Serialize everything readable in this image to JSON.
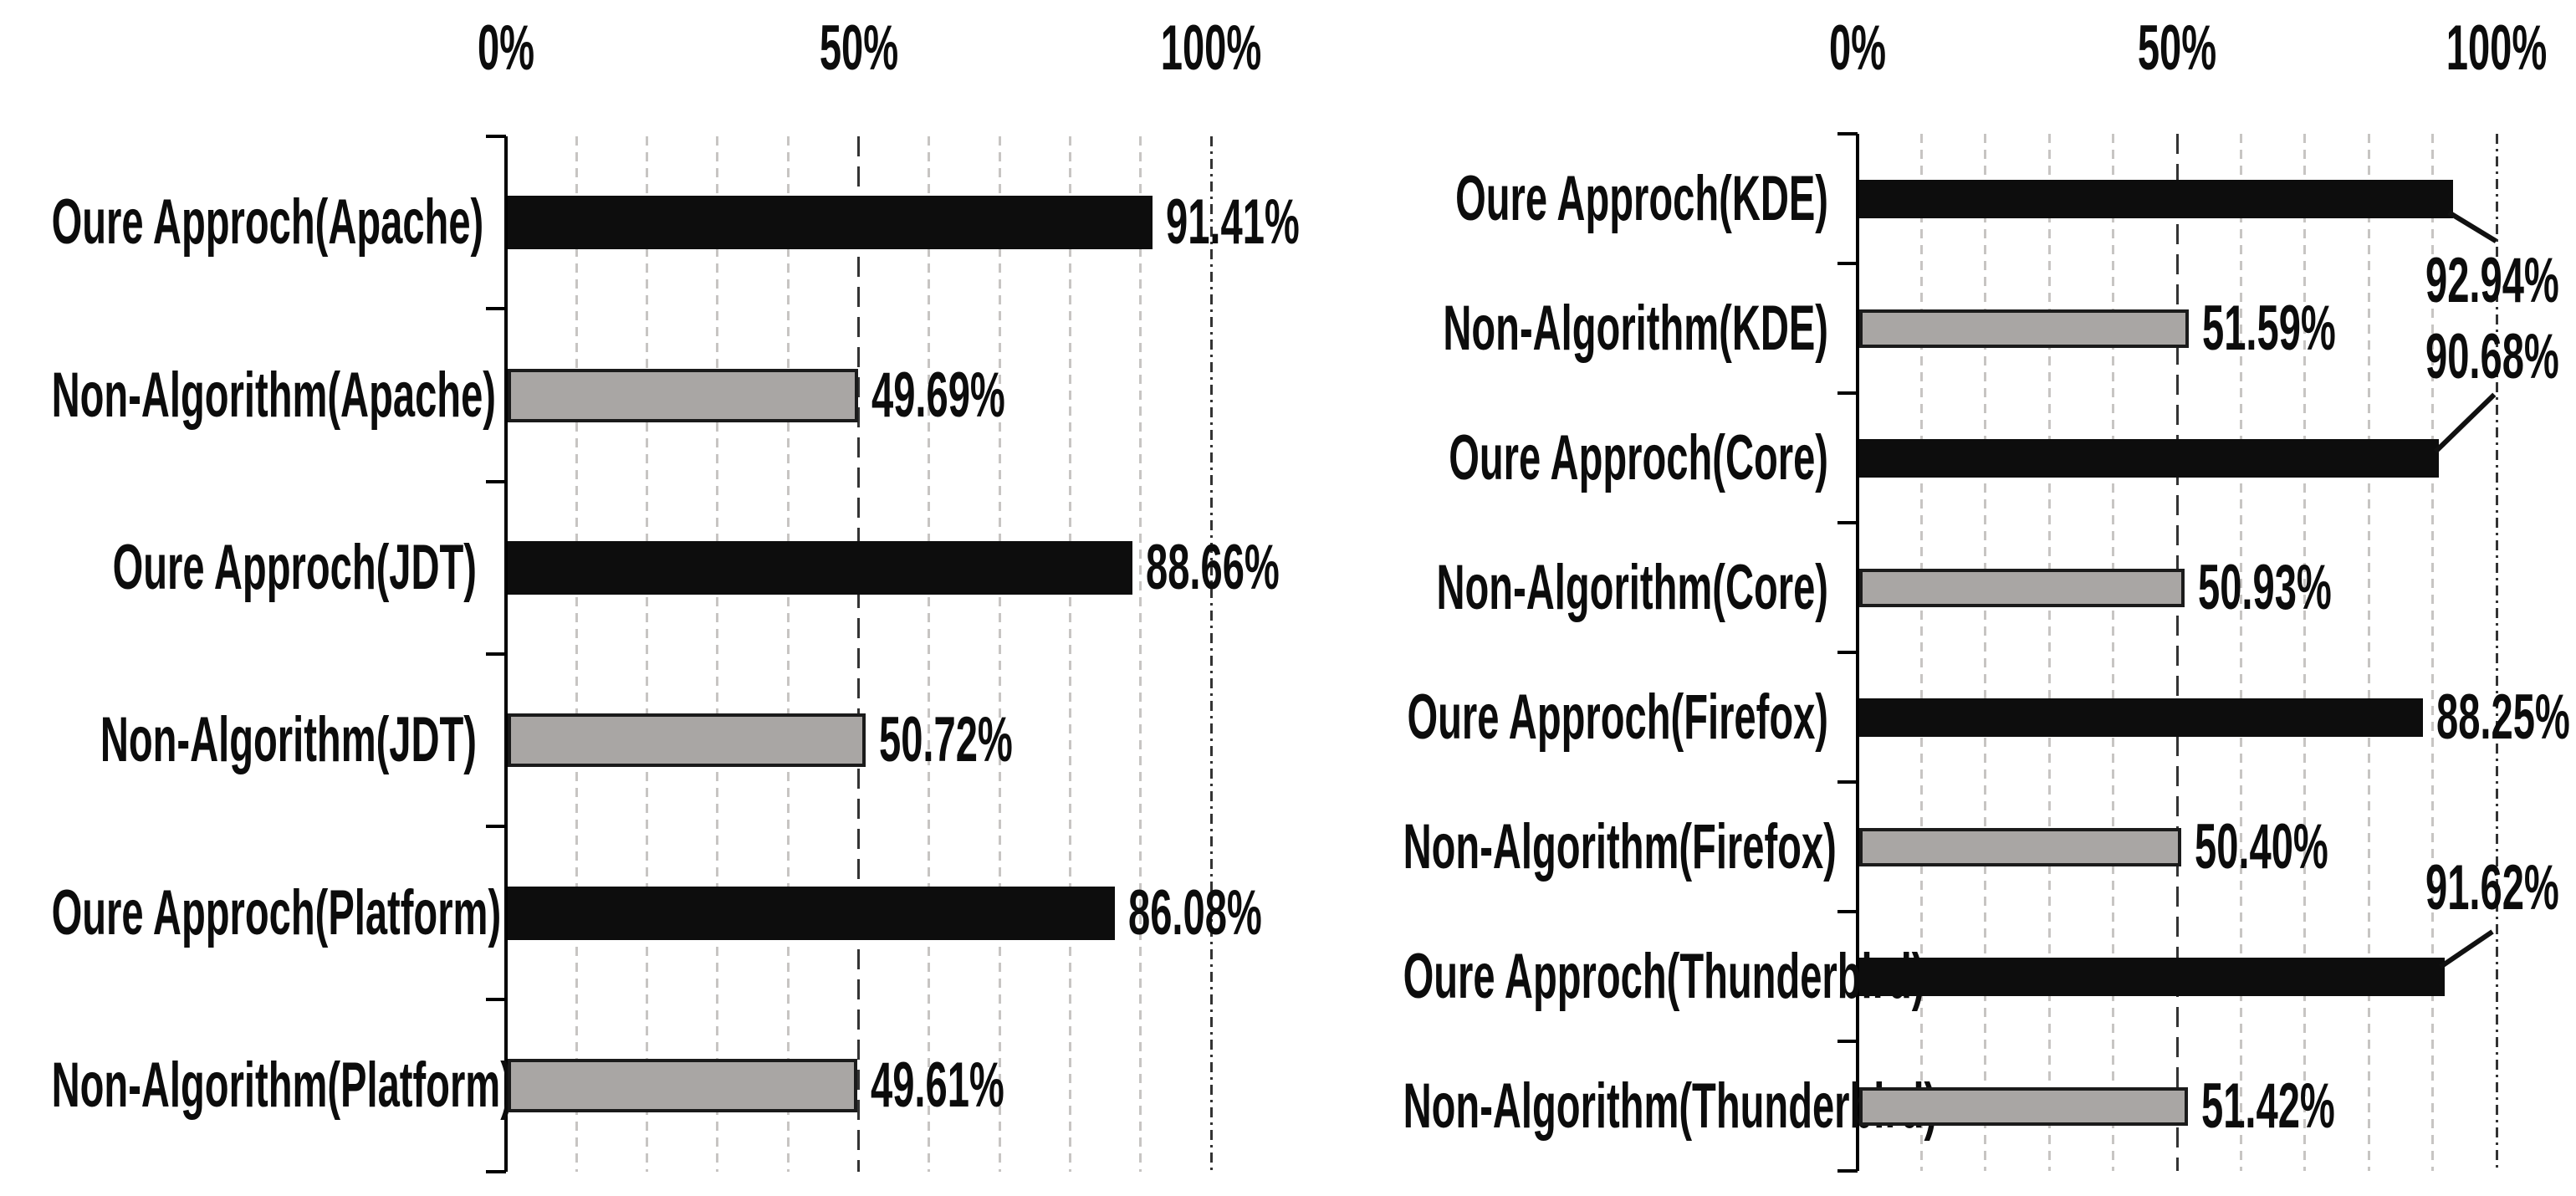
{
  "page": {
    "background": "#ffffff"
  },
  "colors": {
    "bar_black": "#0d0d0d",
    "bar_gray_fill": "#a9a6a4",
    "bar_gray_border": "#1b1b1b",
    "text": "#0c0c0c",
    "grid_minor": "#c7c5c3",
    "grid_major": "#333333",
    "axis": "#000000",
    "leader_line": "#111111"
  },
  "chart_data": [
    {
      "type": "bar",
      "orientation": "horizontal",
      "title": "",
      "xlabel": "",
      "ylabel": "",
      "xlim": [
        0,
        100
      ],
      "axis_position": "top",
      "gridline_step_percent": 10,
      "grid": "on",
      "legend": "none",
      "ticks": [
        {
          "label": "0%",
          "value": 0
        },
        {
          "label": "50%",
          "value": 50
        },
        {
          "label": "100%",
          "value": 100
        }
      ],
      "rows": [
        {
          "label": "Oure Approch(Apache)",
          "value": 91.41,
          "display": "91.41%",
          "series": "our-approach",
          "color_key": "bar_black",
          "callout": false
        },
        {
          "label": "Non-Algorithm(Apache)",
          "value": 49.69,
          "display": "49.69%",
          "series": "non-algorithm",
          "color_key": "bar_gray_fill",
          "callout": false
        },
        {
          "label": "Oure Approch(JDT)",
          "value": 88.66,
          "display": "88.66%",
          "series": "our-approach",
          "color_key": "bar_black",
          "callout": false
        },
        {
          "label": "Non-Algorithm(JDT)",
          "value": 50.72,
          "display": "50.72%",
          "series": "non-algorithm",
          "color_key": "bar_gray_fill",
          "callout": false
        },
        {
          "label": "Oure Approch(Platform)",
          "value": 86.08,
          "display": "86.08%",
          "series": "our-approach",
          "color_key": "bar_black",
          "callout": false
        },
        {
          "label": "Non-Algorithm(Platform)",
          "value": 49.61,
          "display": "49.61%",
          "series": "non-algorithm",
          "color_key": "bar_gray_fill",
          "callout": false
        }
      ]
    },
    {
      "type": "bar",
      "orientation": "horizontal",
      "title": "",
      "xlabel": "",
      "ylabel": "",
      "xlim": [
        0,
        100
      ],
      "axis_position": "top",
      "gridline_step_percent": 10,
      "grid": "on",
      "legend": "none",
      "ticks": [
        {
          "label": "0%",
          "value": 0
        },
        {
          "label": "50%",
          "value": 50
        },
        {
          "label": "100%",
          "value": 100
        }
      ],
      "rows": [
        {
          "label": "Oure Approch(KDE)",
          "value": 92.94,
          "display": "92.94%",
          "series": "our-approach",
          "color_key": "bar_black",
          "callout": true
        },
        {
          "label": "Non-Algorithm(KDE)",
          "value": 51.59,
          "display": "51.59%",
          "series": "non-algorithm",
          "color_key": "bar_gray_fill",
          "callout": false
        },
        {
          "label": "Oure Approch(Core)",
          "value": 90.68,
          "display": "90.68%",
          "series": "our-approach",
          "color_key": "bar_black",
          "callout": true
        },
        {
          "label": "Non-Algorithm(Core)",
          "value": 50.93,
          "display": "50.93%",
          "series": "non-algorithm",
          "color_key": "bar_gray_fill",
          "callout": false
        },
        {
          "label": "Oure Approch(Firefox)",
          "value": 88.25,
          "display": "88.25%",
          "series": "our-approach",
          "color_key": "bar_black",
          "callout": false
        },
        {
          "label": "Non-Algorithm(Firefox)",
          "value": 50.4,
          "display": "50.40%",
          "series": "non-algorithm",
          "color_key": "bar_gray_fill",
          "callout": false
        },
        {
          "label": "Oure Approch(Thunderbird)",
          "value": 91.62,
          "display": "91.62%",
          "series": "our-approach",
          "color_key": "bar_black",
          "callout": true
        },
        {
          "label": "Non-Algorithm(Thunderbird)",
          "value": 51.42,
          "display": "51.42%",
          "series": "non-algorithm",
          "color_key": "bar_gray_fill",
          "callout": false
        }
      ]
    }
  ]
}
